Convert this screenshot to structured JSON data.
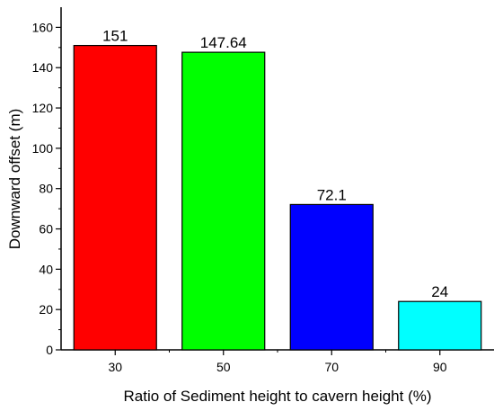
{
  "chart_data": {
    "type": "bar",
    "title": "",
    "xlabel": "Ratio of Sediment height to cavern height (%)",
    "ylabel": "Downward offset (m)",
    "categories": [
      "30",
      "50",
      "70",
      "90"
    ],
    "values": [
      151,
      147.64,
      72.1,
      24
    ],
    "data_labels": [
      "151",
      "147.64",
      "72.1",
      "24"
    ],
    "colors": [
      "#ff0000",
      "#00ff00",
      "#0000ff",
      "#00ffff"
    ],
    "ylim": [
      0,
      170
    ],
    "yticks": [
      0,
      20,
      40,
      60,
      80,
      100,
      120,
      140,
      160
    ],
    "grid": false,
    "legend": "none"
  }
}
